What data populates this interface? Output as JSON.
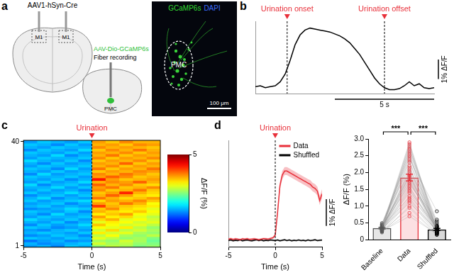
{
  "diagram": {
    "panel": "a",
    "schematic": {
      "injection": "AAV1-hSyn-Cre",
      "injection_sites": [
        "M1",
        "M1"
      ],
      "virus": "AAV-Dio-GCaMP6s",
      "virus_color": "#2fbf3a",
      "method": "Fiber recording",
      "target": "PMC"
    },
    "image": {
      "channels": [
        {
          "name": "GCaMP6s",
          "color": "#33dd33"
        },
        {
          "name": "DAPI",
          "color": "#3b6cff"
        }
      ],
      "region": "PMC",
      "scale_bar": "100 μm"
    }
  },
  "chart_data": [
    {
      "type": "line",
      "panel": "b",
      "x": [
        0,
        0.25,
        0.5,
        0.75,
        1,
        1.25,
        1.5,
        1.75,
        2,
        2.25,
        2.5,
        2.75,
        3,
        3.25,
        3.5,
        3.75,
        4,
        4.25,
        4.5,
        4.75,
        5,
        5.25,
        5.5,
        5.75,
        6,
        6.25,
        6.5,
        6.75,
        7,
        7.25,
        7.5,
        7.75,
        8,
        8.25,
        8.5,
        8.75,
        9
      ],
      "values": [
        0.05,
        0.1,
        0.0,
        0.05,
        0.1,
        0.3,
        0.7,
        1.4,
        2.2,
        2.7,
        2.95,
        3.05,
        3.0,
        2.95,
        2.9,
        2.85,
        2.75,
        2.65,
        2.5,
        2.3,
        2.0,
        1.7,
        1.3,
        0.9,
        0.5,
        0.2,
        0.0,
        -0.1,
        -0.1,
        -0.05,
        0.1,
        0.3,
        0.1,
        0.2,
        0.0,
        -0.05,
        0.0
      ],
      "color": "#000000",
      "xlim": [
        0,
        9
      ],
      "ylim": [
        -0.3,
        3.4
      ],
      "tick_labels": false,
      "annotations": [
        {
          "x": 1.6,
          "label": "Urination onset",
          "color": "#e8303a"
        },
        {
          "x": 6.5,
          "label": "Urination offset",
          "color": "#e8303a"
        }
      ],
      "scale_bars": {
        "x": {
          "length": 5,
          "label": "5 s"
        },
        "y": {
          "length": 1,
          "label": "1% ΔF/F"
        }
      }
    },
    {
      "type": "heatmap",
      "panel": "c",
      "x_bins": [
        -5,
        -4,
        -3,
        -2,
        -1,
        0,
        1,
        2,
        3,
        4,
        5
      ],
      "y": [
        1,
        2,
        3,
        4,
        5,
        6,
        7,
        8,
        9,
        10,
        11,
        12,
        13,
        14,
        15,
        16,
        17,
        18,
        19,
        20,
        21,
        22,
        23,
        24,
        25,
        26,
        27,
        28,
        29,
        30,
        31,
        32,
        33,
        34,
        35,
        36,
        37,
        38,
        39,
        40
      ],
      "cells": [
        [
          1.4,
          1.5,
          1.3,
          1.6,
          1.5,
          2.6,
          2.8,
          2.7,
          2.5,
          2.6
        ],
        [
          1.5,
          1.3,
          1.4,
          1.5,
          1.6,
          2.9,
          2.7,
          2.8,
          2.6,
          2.5
        ],
        [
          1.2,
          1.4,
          1.5,
          1.3,
          1.4,
          2.7,
          2.6,
          2.9,
          2.7,
          2.4
        ],
        [
          1.6,
          1.5,
          1.4,
          1.6,
          1.5,
          3.0,
          2.8,
          2.6,
          2.7,
          2.5
        ],
        [
          1.3,
          1.4,
          1.6,
          1.5,
          1.3,
          2.8,
          3.1,
          2.7,
          2.6,
          2.8
        ],
        [
          1.5,
          1.6,
          1.5,
          1.4,
          1.6,
          3.2,
          2.9,
          3.0,
          2.7,
          2.6
        ],
        [
          1.4,
          1.3,
          1.5,
          1.6,
          1.4,
          2.9,
          3.3,
          2.8,
          2.9,
          2.7
        ],
        [
          1.6,
          1.5,
          1.3,
          1.4,
          1.5,
          3.1,
          3.0,
          3.2,
          2.8,
          2.6
        ],
        [
          1.3,
          1.6,
          1.4,
          1.5,
          1.7,
          3.4,
          3.1,
          2.9,
          3.0,
          2.8
        ],
        [
          1.5,
          1.4,
          1.6,
          1.3,
          1.5,
          3.0,
          3.2,
          3.1,
          2.9,
          3.0
        ],
        [
          1.7,
          1.5,
          1.4,
          1.6,
          1.4,
          3.3,
          3.5,
          3.0,
          3.1,
          2.9
        ],
        [
          1.4,
          1.6,
          1.5,
          1.5,
          1.6,
          3.6,
          3.2,
          3.3,
          3.0,
          2.8
        ],
        [
          1.5,
          1.3,
          1.7,
          1.4,
          1.5,
          3.2,
          3.4,
          3.6,
          3.1,
          3.0
        ],
        [
          1.6,
          1.5,
          1.4,
          1.6,
          1.3,
          3.5,
          3.3,
          3.2,
          3.4,
          3.1
        ],
        [
          1.3,
          1.4,
          1.5,
          1.7,
          1.6,
          3.4,
          3.7,
          3.3,
          3.2,
          3.0
        ],
        [
          1.5,
          1.6,
          1.4,
          1.5,
          1.4,
          4.1,
          3.5,
          3.4,
          3.3,
          3.2
        ],
        [
          1.4,
          1.5,
          1.6,
          1.3,
          1.5,
          3.6,
          3.4,
          3.8,
          3.5,
          3.1
        ],
        [
          1.6,
          1.4,
          1.5,
          1.6,
          1.7,
          3.3,
          3.6,
          3.5,
          3.7,
          3.4
        ],
        [
          1.5,
          1.7,
          1.3,
          1.5,
          1.4,
          3.8,
          3.5,
          3.3,
          3.4,
          3.6
        ],
        [
          1.3,
          1.5,
          1.6,
          1.4,
          1.6,
          3.5,
          3.9,
          3.6,
          3.3,
          3.2
        ],
        [
          1.6,
          1.4,
          1.5,
          1.7,
          1.5,
          3.4,
          3.6,
          4.2,
          3.5,
          3.3
        ],
        [
          1.4,
          1.6,
          1.4,
          1.5,
          1.3,
          3.7,
          3.4,
          3.5,
          3.8,
          3.4
        ],
        [
          1.5,
          1.5,
          1.7,
          1.4,
          1.6,
          3.6,
          3.8,
          3.4,
          3.5,
          3.7
        ],
        [
          1.7,
          1.3,
          1.5,
          1.6,
          1.4,
          3.9,
          3.5,
          3.7,
          3.4,
          3.3
        ],
        [
          1.4,
          1.6,
          1.4,
          1.5,
          1.7,
          3.5,
          3.7,
          3.6,
          3.9,
          3.5
        ],
        [
          1.5,
          1.4,
          1.6,
          1.3,
          1.5,
          4.3,
          3.6,
          3.4,
          3.5,
          3.6
        ],
        [
          1.6,
          1.5,
          1.5,
          1.6,
          1.4,
          3.6,
          3.9,
          3.7,
          3.4,
          3.5
        ],
        [
          1.3,
          1.7,
          1.4,
          1.5,
          1.6,
          3.7,
          3.5,
          3.8,
          3.6,
          3.4
        ],
        [
          1.5,
          1.4,
          1.6,
          1.4,
          1.5,
          3.4,
          3.6,
          3.5,
          3.7,
          3.6
        ],
        [
          1.6,
          1.5,
          1.3,
          1.7,
          1.4,
          3.8,
          3.4,
          3.6,
          3.5,
          3.8
        ],
        [
          1.4,
          1.6,
          1.5,
          1.5,
          1.6,
          3.5,
          3.7,
          3.4,
          3.6,
          3.5
        ],
        [
          1.5,
          1.3,
          1.6,
          1.4,
          1.5,
          3.6,
          3.5,
          3.9,
          3.4,
          3.6
        ],
        [
          1.7,
          1.5,
          1.4,
          1.6,
          1.3,
          3.4,
          3.6,
          3.5,
          3.7,
          3.4
        ],
        [
          1.4,
          1.6,
          1.5,
          1.5,
          1.6,
          3.7,
          3.4,
          3.6,
          3.5,
          3.7
        ],
        [
          1.5,
          1.4,
          1.7,
          1.3,
          1.5,
          3.5,
          3.8,
          3.4,
          3.6,
          3.5
        ],
        [
          1.6,
          1.5,
          1.4,
          1.6,
          1.4,
          3.6,
          3.5,
          3.7,
          3.4,
          3.6
        ],
        [
          1.3,
          1.6,
          1.5,
          1.4,
          1.7,
          3.4,
          3.7,
          3.5,
          3.8,
          3.5
        ],
        [
          1.5,
          1.4,
          1.6,
          1.5,
          1.5,
          3.7,
          3.5,
          3.6,
          3.5,
          3.4
        ],
        [
          1.6,
          1.5,
          1.3,
          1.6,
          1.4,
          3.5,
          3.6,
          3.4,
          3.7,
          3.6
        ],
        [
          1.4,
          1.6,
          1.5,
          1.4,
          1.6,
          3.6,
          3.4,
          3.7,
          3.5,
          3.5
        ]
      ],
      "xlim": [
        -5,
        5
      ],
      "xticks": [
        -5,
        0,
        5
      ],
      "ylim": [
        0.5,
        40.5
      ],
      "yticks": [
        1,
        40
      ],
      "xlabel": "Time (s)",
      "annotations": [
        {
          "x": 0,
          "label": "Urination",
          "color": "#e8303a"
        }
      ],
      "colorbar": {
        "range": [
          0,
          5
        ],
        "ticks": [
          0,
          5
        ],
        "label": "ΔF/F (%)"
      }
    },
    {
      "type": "line",
      "panel": "d",
      "x": [
        -5,
        -4.75,
        -4.5,
        -4.25,
        -4,
        -3.75,
        -3.5,
        -3.25,
        -3,
        -2.75,
        -2.5,
        -2.25,
        -2,
        -1.75,
        -1.5,
        -1.25,
        -1,
        -0.75,
        -0.5,
        -0.25,
        0,
        0.25,
        0.5,
        0.75,
        1,
        1.25,
        1.5,
        1.75,
        2,
        2.25,
        2.5,
        2.75,
        3,
        3.25,
        3.5,
        3.75,
        4,
        4.25,
        4.5,
        4.75,
        5
      ],
      "series": [
        {
          "name": "Data",
          "color": "#e8303a",
          "values": [
            0.3,
            0.32,
            0.29,
            0.31,
            0.3,
            0.28,
            0.31,
            0.3,
            0.32,
            0.29,
            0.3,
            0.31,
            0.3,
            0.28,
            0.3,
            0.32,
            0.31,
            0.3,
            0.33,
            0.35,
            0.45,
            1.3,
            2.3,
            2.7,
            2.85,
            2.85,
            2.8,
            2.75,
            2.7,
            2.65,
            2.6,
            2.55,
            2.5,
            2.45,
            2.4,
            2.35,
            2.25,
            2.2,
            2.1,
            1.75,
            2.0
          ],
          "sem": [
            0.04,
            0.04,
            0.04,
            0.04,
            0.04,
            0.04,
            0.04,
            0.04,
            0.04,
            0.04,
            0.04,
            0.04,
            0.04,
            0.04,
            0.04,
            0.04,
            0.04,
            0.04,
            0.04,
            0.04,
            0.06,
            0.12,
            0.15,
            0.15,
            0.15,
            0.15,
            0.15,
            0.15,
            0.15,
            0.15,
            0.15,
            0.15,
            0.15,
            0.15,
            0.15,
            0.16,
            0.16,
            0.16,
            0.16,
            0.17,
            0.17
          ]
        },
        {
          "name": "Shuffled",
          "color": "#000000",
          "values": [
            0.25,
            0.27,
            0.24,
            0.26,
            0.25,
            0.28,
            0.24,
            0.26,
            0.27,
            0.25,
            0.24,
            0.26,
            0.28,
            0.25,
            0.27,
            0.24,
            0.26,
            0.25,
            0.27,
            0.26,
            0.25,
            0.27,
            0.24,
            0.26,
            0.28,
            0.25,
            0.27,
            0.24,
            0.26,
            0.25,
            0.27,
            0.25,
            0.26,
            0.24,
            0.27,
            0.25,
            0.26,
            0.28,
            0.25,
            0.26,
            0.27
          ],
          "sem": [
            0.03,
            0.03,
            0.03,
            0.03,
            0.03,
            0.03,
            0.03,
            0.03,
            0.03,
            0.03,
            0.03,
            0.03,
            0.03,
            0.03,
            0.03,
            0.03,
            0.03,
            0.03,
            0.03,
            0.03,
            0.03,
            0.03,
            0.03,
            0.03,
            0.03,
            0.03,
            0.03,
            0.03,
            0.03,
            0.03,
            0.03,
            0.03,
            0.03,
            0.03,
            0.03,
            0.03,
            0.03,
            0.03,
            0.03,
            0.03,
            0.03
          ]
        }
      ],
      "xlim": [
        -5,
        5
      ],
      "xticks": [
        -5,
        0,
        5
      ],
      "ylim": [
        0,
        4
      ],
      "tick_labels": "x",
      "xlabel": "Time (s)",
      "legend": "upper right",
      "annotations": [
        {
          "x": 0,
          "label": "Urination",
          "color": "#e8303a"
        }
      ],
      "scale_bars": {
        "y": {
          "length": 1,
          "label": "1% ΔF/F"
        }
      }
    },
    {
      "type": "bar",
      "categories": [
        "Baseline",
        "Data",
        "Shuffled"
      ],
      "values": [
        0.35,
        1.85,
        0.31
      ],
      "errors": [
        0.02,
        0.1,
        0.03
      ],
      "colors": [
        "#555555",
        "#e8303a",
        "#000000"
      ],
      "ylim": [
        0,
        3
      ],
      "yticks": [
        0,
        0.5,
        {
          "value": 1,
          "label": "1.0"
        },
        1.5,
        {
          "value": 2,
          "label": "2.0"
        },
        2.5,
        {
          "value": 3,
          "label": "3.0"
        }
      ],
      "ylabel": "ΔF/F (%)",
      "trials": [
        [
          0.3,
          1.2,
          0.25
        ],
        [
          0.35,
          2.9,
          0.3
        ],
        [
          0.28,
          2.1,
          0.4
        ],
        [
          0.4,
          1.6,
          0.2
        ],
        [
          0.25,
          0.8,
          0.15
        ],
        [
          0.45,
          2.5,
          0.35
        ],
        [
          0.32,
          1.9,
          0.28
        ],
        [
          0.38,
          2.7,
          0.55
        ],
        [
          0.3,
          1.4,
          0.22
        ],
        [
          0.5,
          2.2,
          0.3
        ],
        [
          0.22,
          1.0,
          0.18
        ],
        [
          0.35,
          2.4,
          0.85
        ],
        [
          0.42,
          1.75,
          0.3
        ],
        [
          0.3,
          2.85,
          0.25
        ],
        [
          0.28,
          1.3,
          0.4
        ],
        [
          0.36,
          2.0,
          0.2
        ],
        [
          0.33,
          1.55,
          0.32
        ],
        [
          0.47,
          2.6,
          0.45
        ],
        [
          0.25,
          0.95,
          0.15
        ],
        [
          0.38,
          1.85,
          0.28
        ],
        [
          0.31,
          2.3,
          0.35
        ],
        [
          0.4,
          1.65,
          0.6
        ],
        [
          0.27,
          2.75,
          0.22
        ],
        [
          0.34,
          1.1,
          0.3
        ],
        [
          0.44,
          2.15,
          0.25
        ],
        [
          0.29,
          1.45,
          0.38
        ],
        [
          0.37,
          2.55,
          0.2
        ],
        [
          0.32,
          1.7,
          0.42
        ],
        [
          0.26,
          0.7,
          0.18
        ],
        [
          0.41,
          2.35,
          0.3
        ],
        [
          0.35,
          1.95,
          0.27
        ],
        [
          0.3,
          2.65,
          0.5
        ],
        [
          0.39,
          1.25,
          0.24
        ],
        [
          0.33,
          2.05,
          0.33
        ],
        [
          0.28,
          1.8,
          0.21
        ],
        [
          0.46,
          2.45,
          0.36
        ],
        [
          0.31,
          1.5,
          0.26
        ],
        [
          0.36,
          2.8,
          0.4
        ],
        [
          0.24,
          1.15,
          0.19
        ],
        [
          0.34,
          1.9,
          0.31
        ]
      ],
      "significance": [
        {
          "from": "Baseline",
          "to": "Data",
          "label": "***"
        },
        {
          "from": "Data",
          "to": "Shuffled",
          "label": "***"
        }
      ]
    }
  ]
}
